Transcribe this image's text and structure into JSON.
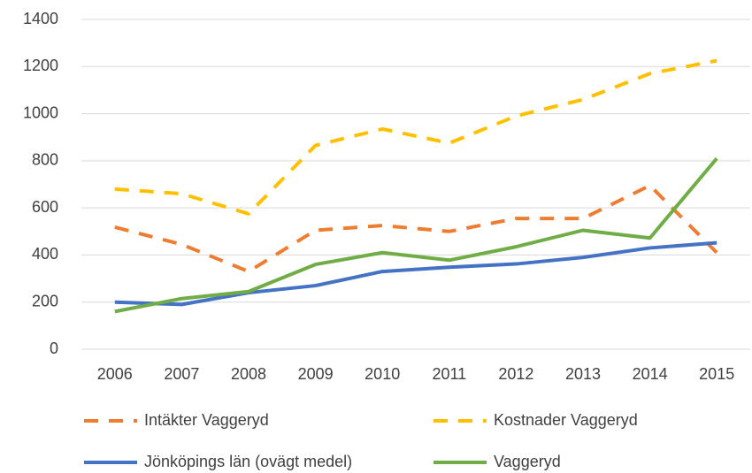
{
  "chart_data": {
    "type": "line",
    "categories": [
      "2006",
      "2007",
      "2008",
      "2009",
      "2010",
      "2011",
      "2012",
      "2013",
      "2014",
      "2015"
    ],
    "series": [
      {
        "name": "Intäkter Vaggeryd",
        "color": "#ed7d31",
        "dashed": true,
        "values": [
          518,
          445,
          330,
          505,
          525,
          500,
          555,
          555,
          695,
          410
        ]
      },
      {
        "name": "Kostnader Vaggeryd",
        "color": "#ffc000",
        "dashed": true,
        "values": [
          680,
          660,
          575,
          865,
          935,
          875,
          990,
          1060,
          1170,
          1225
        ]
      },
      {
        "name": "Jönköpings län (ovägt medel)",
        "color": "#4472c4",
        "dashed": false,
        "values": [
          200,
          190,
          240,
          270,
          330,
          348,
          362,
          390,
          430,
          452
        ]
      },
      {
        "name": "Vaggeryd",
        "color": "#70ad47",
        "dashed": false,
        "values": [
          160,
          215,
          245,
          360,
          410,
          378,
          435,
          505,
          472,
          810
        ]
      }
    ],
    "ylim": [
      0,
      1400
    ],
    "yticks": [
      0,
      200,
      400,
      600,
      800,
      1000,
      1200,
      1400
    ],
    "grid": true,
    "legend": "bottom"
  }
}
